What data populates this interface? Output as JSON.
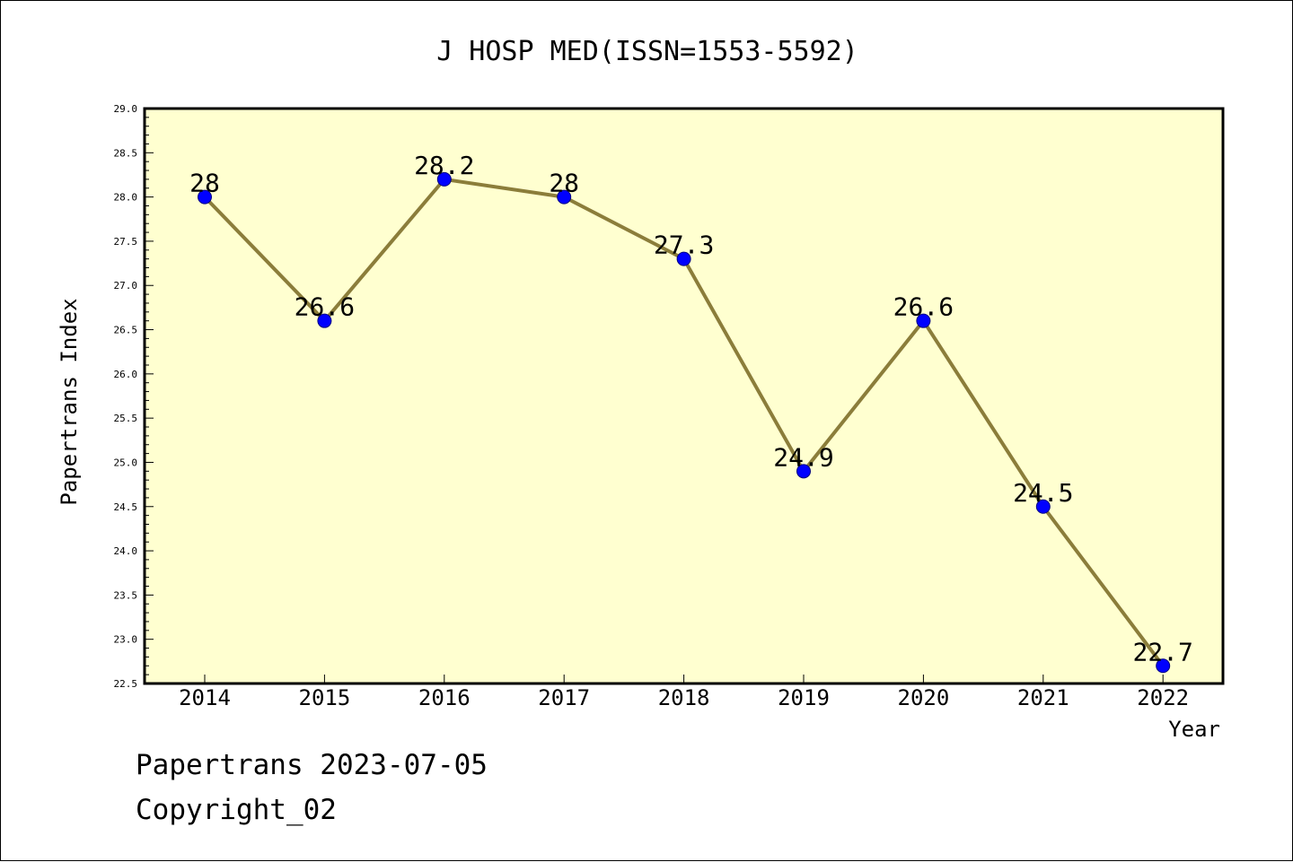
{
  "chart_data": {
    "type": "line",
    "title": "J HOSP MED(ISSN=1553-5592)",
    "xlabel": "Year",
    "ylabel": "Papertrans Index",
    "categories": [
      "2014",
      "2015",
      "2016",
      "2017",
      "2018",
      "2019",
      "2020",
      "2021",
      "2022"
    ],
    "series": [
      {
        "values": [
          28,
          26.6,
          28.2,
          28,
          27.3,
          24.9,
          26.6,
          24.5,
          22.7
        ]
      }
    ],
    "data_labels": [
      "28",
      "26.6",
      "28.2",
      "28",
      "27.3",
      "24.9",
      "26.6",
      "24.5",
      "22.7"
    ],
    "ylim": [
      22.5,
      29.0
    ],
    "y_ticks": [
      "22.5",
      "23.0",
      "23.5",
      "24.0",
      "24.5",
      "25.0",
      "25.5",
      "26.0",
      "26.5",
      "27.0",
      "27.5",
      "28.0",
      "28.5",
      "29.0"
    ],
    "grid": false,
    "legend": "none",
    "colors": {
      "plot_background": "#ffffd0",
      "line": "#8b7d3a",
      "marker": "#0000ff"
    }
  },
  "footer": {
    "date_line": "Papertrans 2023-07-05",
    "copyright": "Copyright_02"
  }
}
